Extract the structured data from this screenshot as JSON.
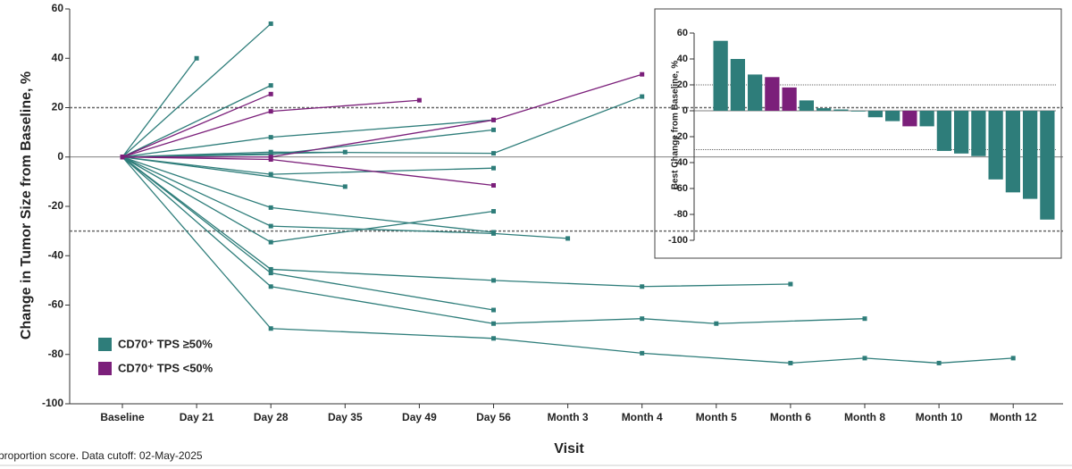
{
  "chart_data": [
    {
      "type": "line",
      "x_label": "Visit",
      "y_label": "Change in Tumor Size from Baseline, %",
      "categories": [
        "Baseline",
        "Day 21",
        "Day 28",
        "Day 35",
        "Day 49",
        "Day 56",
        "Month 3",
        "Month 4",
        "Month 5",
        "Month 6",
        "Month 8",
        "Month 10",
        "Month 12"
      ],
      "ylim": [
        -100,
        60
      ],
      "yticks": [
        -100,
        -80,
        -60,
        -40,
        -20,
        0,
        20,
        40,
        60
      ],
      "reference_lines": [
        20,
        -30
      ],
      "legend": "lower left",
      "footnote": "proportion score. Data cutoff: 02-May-2025",
      "series": [
        {
          "name": "CD70⁺ TPS ≥50%",
          "color": "#2e7d7a",
          "lines": [
            {
              "x": [
                "Baseline",
                "Day 21"
              ],
              "values": [
                0,
                40
              ]
            },
            {
              "x": [
                "Baseline",
                "Day 28"
              ],
              "values": [
                0,
                54
              ]
            },
            {
              "x": [
                "Baseline",
                "Day 28"
              ],
              "values": [
                0,
                29
              ]
            },
            {
              "x": [
                "Baseline",
                "Day 28",
                "Day 56"
              ],
              "values": [
                0,
                8,
                15
              ]
            },
            {
              "x": [
                "Baseline",
                "Day 28",
                "Day 56",
                "Month 4"
              ],
              "values": [
                0,
                2,
                1.5,
                24.5
              ]
            },
            {
              "x": [
                "Baseline",
                "Day 28",
                "Day 56"
              ],
              "values": [
                0,
                1,
                11
              ]
            },
            {
              "x": [
                "Baseline",
                "Day 35"
              ],
              "values": [
                0,
                2
              ]
            },
            {
              "x": [
                "Baseline",
                "Day 35"
              ],
              "values": [
                0,
                -12
              ]
            },
            {
              "x": [
                "Baseline",
                "Day 28",
                "Day 56"
              ],
              "values": [
                0,
                -7,
                -4.5
              ]
            },
            {
              "x": [
                "Baseline",
                "Day 28",
                "Day 56"
              ],
              "values": [
                0,
                -20.5,
                -30.5
              ]
            },
            {
              "x": [
                "Baseline",
                "Day 28",
                "Day 56",
                "Month 3"
              ],
              "values": [
                0,
                -28,
                -31,
                -33
              ]
            },
            {
              "x": [
                "Baseline",
                "Day 28",
                "Day 56"
              ],
              "values": [
                0,
                -34.5,
                -22
              ]
            },
            {
              "x": [
                "Baseline",
                "Day 28",
                "Day 56",
                "Month 4",
                "Month 6"
              ],
              "values": [
                0,
                -45.5,
                -50,
                -52.5,
                -51.5
              ]
            },
            {
              "x": [
                "Baseline",
                "Day 28",
                "Day 56"
              ],
              "values": [
                0,
                -47,
                -62
              ]
            },
            {
              "x": [
                "Baseline",
                "Day 28",
                "Day 56",
                "Month 4",
                "Month 5",
                "Month 8"
              ],
              "values": [
                0,
                -52.5,
                -67.5,
                -65.5,
                -67.5,
                -65.5
              ]
            },
            {
              "x": [
                "Baseline",
                "Day 28",
                "Day 56",
                "Month 4",
                "Month 6",
                "Month 8",
                "Month 10",
                "Month 12"
              ],
              "values": [
                0,
                -69.5,
                -73.5,
                -79.5,
                -83.5,
                -81.5,
                -83.5,
                -81.5
              ]
            }
          ]
        },
        {
          "name": "CD70⁺ TPS <50%",
          "color": "#7b1f7a",
          "lines": [
            {
              "x": [
                "Baseline",
                "Day 28"
              ],
              "values": [
                0,
                25.5
              ]
            },
            {
              "x": [
                "Baseline",
                "Day 28",
                "Day 49"
              ],
              "values": [
                0,
                18.5,
                23
              ]
            },
            {
              "x": [
                "Baseline",
                "Day 28",
                "Day 56",
                "Month 4"
              ],
              "values": [
                0,
                0,
                15,
                33.5
              ]
            },
            {
              "x": [
                "Baseline",
                "Day 28",
                "Day 56"
              ],
              "values": [
                0,
                -1,
                -11.5
              ]
            }
          ]
        }
      ]
    },
    {
      "type": "bar",
      "y_label": "Best Change from Baseline, %",
      "ylim": [
        -100,
        60
      ],
      "yticks": [
        -100,
        -80,
        -60,
        -40,
        -20,
        0,
        20,
        40,
        60
      ],
      "reference_lines": [
        20,
        -30
      ],
      "values": [
        54,
        40,
        28,
        26,
        18,
        8,
        2,
        1,
        0,
        -5,
        -8,
        -12,
        -12,
        -31,
        -33,
        -35,
        -53,
        -63,
        -68,
        -84
      ],
      "colors": [
        "#2e7d7a",
        "#2e7d7a",
        "#2e7d7a",
        "#7b1f7a",
        "#7b1f7a",
        "#2e7d7a",
        "#2e7d7a",
        "#2e7d7a",
        "#2e7d7a",
        "#2e7d7a",
        "#2e7d7a",
        "#7b1f7a",
        "#2e7d7a",
        "#2e7d7a",
        "#2e7d7a",
        "#2e7d7a",
        "#2e7d7a",
        "#2e7d7a",
        "#2e7d7a",
        "#2e7d7a"
      ]
    }
  ]
}
